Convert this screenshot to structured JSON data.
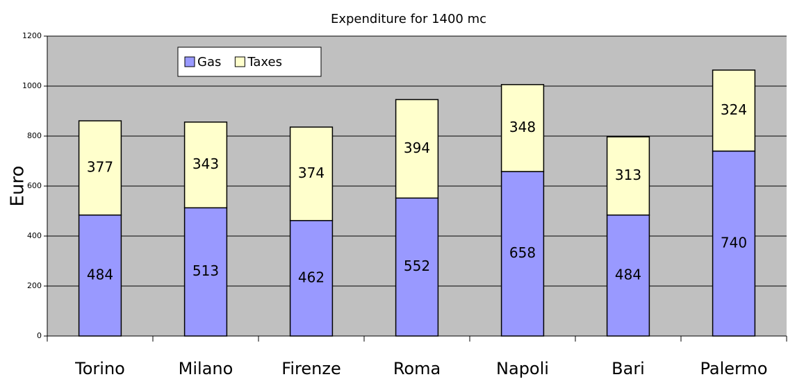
{
  "chart_data": {
    "type": "stacked_bar",
    "title": "Expenditure for 1400 mc",
    "y_label": "Euro",
    "categories": [
      "Torino",
      "Milano",
      "Firenze",
      "Roma",
      "Napoli",
      "Bari",
      "Palermo"
    ],
    "series": [
      {
        "name": "Gas",
        "color": "#9999ff",
        "values": [
          484,
          513,
          462,
          552,
          658,
          484,
          740
        ]
      },
      {
        "name": "Taxes",
        "color": "#ffffcc",
        "values": [
          377,
          343,
          374,
          394,
          348,
          313,
          324
        ]
      }
    ],
    "ylim": [
      0,
      1200
    ],
    "yticks": [
      0,
      200,
      400,
      600,
      800,
      1000,
      1200
    ],
    "grid": true,
    "legend": "top-left"
  }
}
